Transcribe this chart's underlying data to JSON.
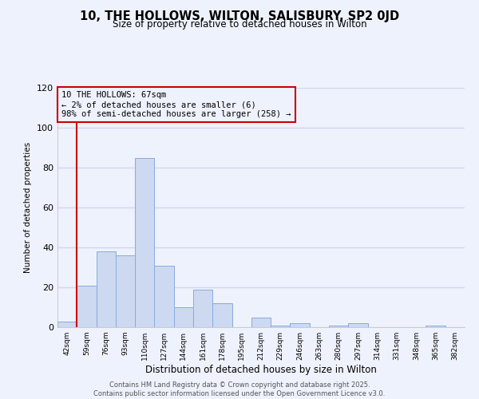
{
  "title": "10, THE HOLLOWS, WILTON, SALISBURY, SP2 0JD",
  "subtitle": "Size of property relative to detached houses in Wilton",
  "xlabel": "Distribution of detached houses by size in Wilton",
  "ylabel": "Number of detached properties",
  "bar_labels": [
    "42sqm",
    "59sqm",
    "76sqm",
    "93sqm",
    "110sqm",
    "127sqm",
    "144sqm",
    "161sqm",
    "178sqm",
    "195sqm",
    "212sqm",
    "229sqm",
    "246sqm",
    "263sqm",
    "280sqm",
    "297sqm",
    "314sqm",
    "331sqm",
    "348sqm",
    "365sqm",
    "382sqm"
  ],
  "bar_values": [
    3,
    21,
    38,
    36,
    85,
    31,
    10,
    19,
    12,
    0,
    5,
    1,
    2,
    0,
    1,
    2,
    0,
    0,
    0,
    1,
    0
  ],
  "bar_color": "#ccd9f0",
  "bar_edge_color": "#88aadd",
  "vline_x": 0.5,
  "vline_color": "#cc0000",
  "annotation_text": "10 THE HOLLOWS: 67sqm\n← 2% of detached houses are smaller (6)\n98% of semi-detached houses are larger (258) →",
  "annotation_box_edgecolor": "#cc0000",
  "ylim": [
    0,
    120
  ],
  "yticks": [
    0,
    20,
    40,
    60,
    80,
    100,
    120
  ],
  "background_color": "#eef2fc",
  "grid_color": "#d0d8ee",
  "footer_line1": "Contains HM Land Registry data © Crown copyright and database right 2025.",
  "footer_line2": "Contains public sector information licensed under the Open Government Licence v3.0."
}
